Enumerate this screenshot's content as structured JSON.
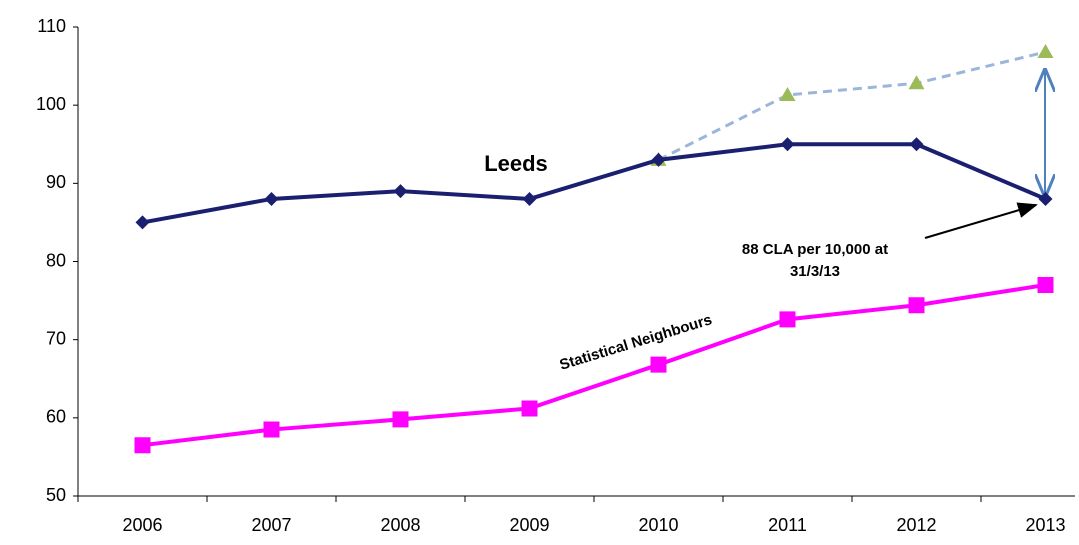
{
  "chart_data": {
    "type": "line",
    "categories": [
      "2006",
      "2007",
      "2008",
      "2009",
      "2010",
      "2011",
      "2012",
      "2013"
    ],
    "series": [
      {
        "name": "Leeds",
        "color": "#1b1f6f",
        "marker": "diamond",
        "dash": false,
        "values": [
          85,
          88,
          89,
          88,
          93,
          95,
          95,
          88
        ]
      },
      {
        "name": "Statistical Neighbours",
        "color": "#ff00ff",
        "marker": "square",
        "dash": false,
        "values": [
          56.5,
          58.5,
          59.8,
          61.2,
          66.8,
          72.6,
          74.4,
          77
        ]
      },
      {
        "color": "#9bb6da",
        "marker_color": "#9bbb59",
        "marker": "triangle",
        "dash": true,
        "values": [
          null,
          null,
          null,
          null,
          93,
          101.3,
          102.8,
          106.8
        ]
      }
    ],
    "annotation": [
      "88 CLA per 10,000 at",
      "31/3/13"
    ],
    "ylim": [
      50,
      110
    ],
    "yticks": [
      50,
      60,
      70,
      80,
      90,
      100,
      110
    ],
    "grid": false
  }
}
